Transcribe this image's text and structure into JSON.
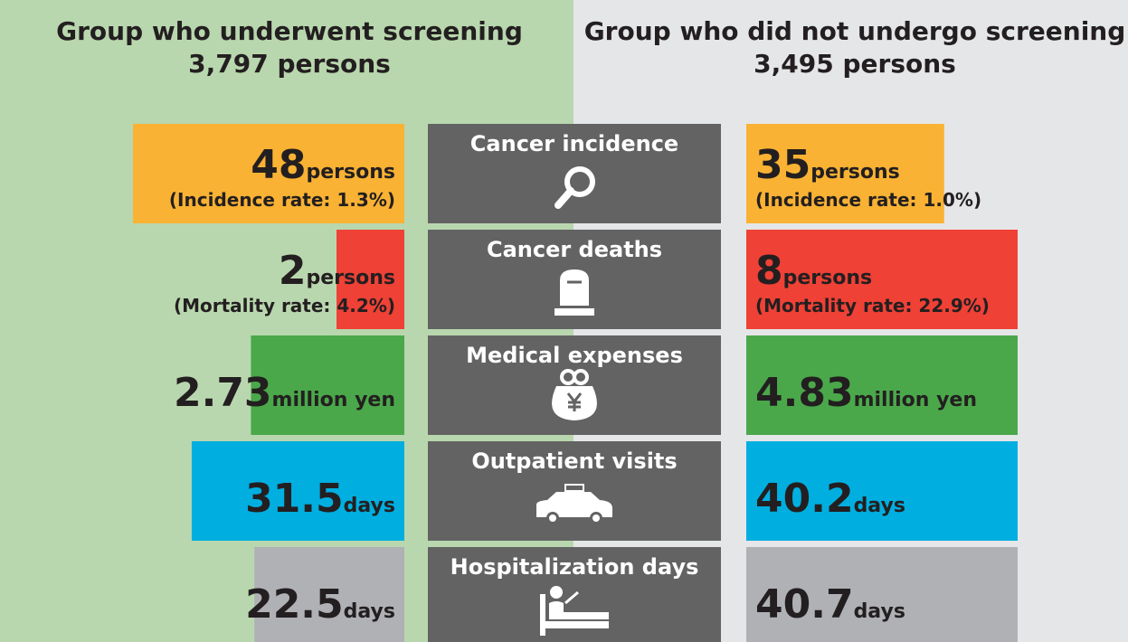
{
  "groups": [
    {
      "title": "Group who underwent screening",
      "count": "3,797 persons"
    },
    {
      "title": "Group who did not undergo screening",
      "count": "3,495 persons"
    }
  ],
  "rows": [
    {
      "label": "Cancer incidence",
      "color": "#f9b233",
      "icon": "search",
      "left": {
        "value": 48,
        "unit": "persons",
        "note": "(Incidence rate: 1.3%)"
      },
      "right": {
        "value": 35,
        "unit": "persons",
        "note": "(Incidence rate: 1.0%)"
      }
    },
    {
      "label": "Cancer deaths",
      "color": "#ef4136",
      "icon": "grave",
      "left": {
        "value": 2,
        "unit": "persons",
        "note": "(Mortality rate: 4.2%)"
      },
      "right": {
        "value": 8,
        "unit": "persons",
        "note": "(Mortality rate: 22.9%)"
      }
    },
    {
      "label": "Medical expenses",
      "color": "#4aa84a",
      "icon": "purse",
      "left": {
        "value": 2.73,
        "unit": "million yen"
      },
      "right": {
        "value": 4.83,
        "unit": "million yen"
      }
    },
    {
      "label": "Outpatient visits",
      "color": "#00aee0",
      "icon": "car",
      "left": {
        "value": 31.5,
        "unit": "days"
      },
      "right": {
        "value": 40.2,
        "unit": "days"
      }
    },
    {
      "label": "Hospitalization days",
      "color": "#b0b1b5",
      "icon": "bed",
      "left": {
        "value": 22.5,
        "unit": "days"
      },
      "right": {
        "value": 40.7,
        "unit": "days"
      }
    }
  ]
}
